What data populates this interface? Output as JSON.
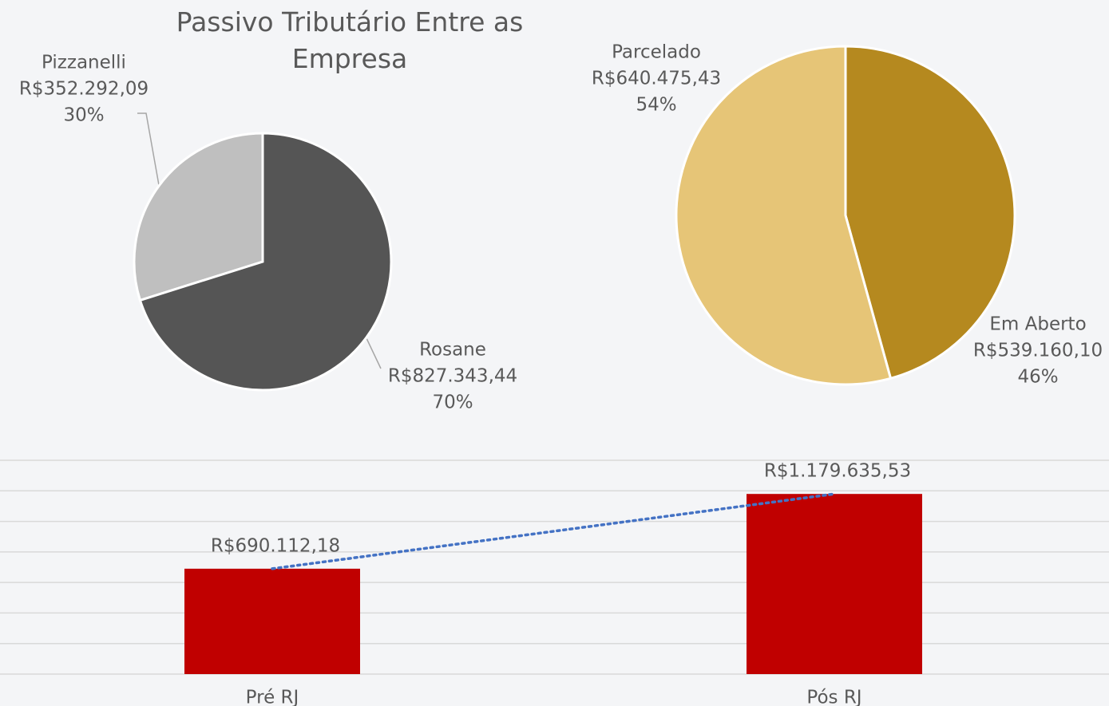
{
  "chart_data": [
    {
      "type": "pie",
      "title": "Passivo Tributário Entre as Empresa",
      "categories": [
        "Pizzanelli",
        "Rosane"
      ],
      "values": [
        352292.09,
        827343.44
      ],
      "value_labels": [
        "R$352.292,09",
        "R$827.343,44"
      ],
      "percent_labels": [
        "30%",
        "70%"
      ],
      "colors": [
        "#bfbfbf",
        "#555555"
      ]
    },
    {
      "type": "pie",
      "categories": [
        "Em Aberto",
        "Parcelado"
      ],
      "values": [
        539160.1,
        640475.43
      ],
      "value_labels": [
        "R$539.160,10",
        "R$640.475,43"
      ],
      "percent_labels": [
        "46%",
        "54%"
      ],
      "colors": [
        "#b5891f",
        "#e6c577"
      ]
    },
    {
      "type": "bar",
      "categories": [
        "Pré RJ",
        "Pós RJ"
      ],
      "values": [
        690112.18,
        1179635.53
      ],
      "value_labels": [
        "R$690.112,18",
        "R$1.179.635,53"
      ],
      "color": "#c00000",
      "ylim": [
        0,
        1400000
      ],
      "yticks": [
        0,
        200000,
        400000,
        600000,
        800000,
        1000000,
        1200000,
        1400000
      ],
      "grid": true,
      "trendline": true,
      "trendline_color": "#4472c4"
    }
  ]
}
